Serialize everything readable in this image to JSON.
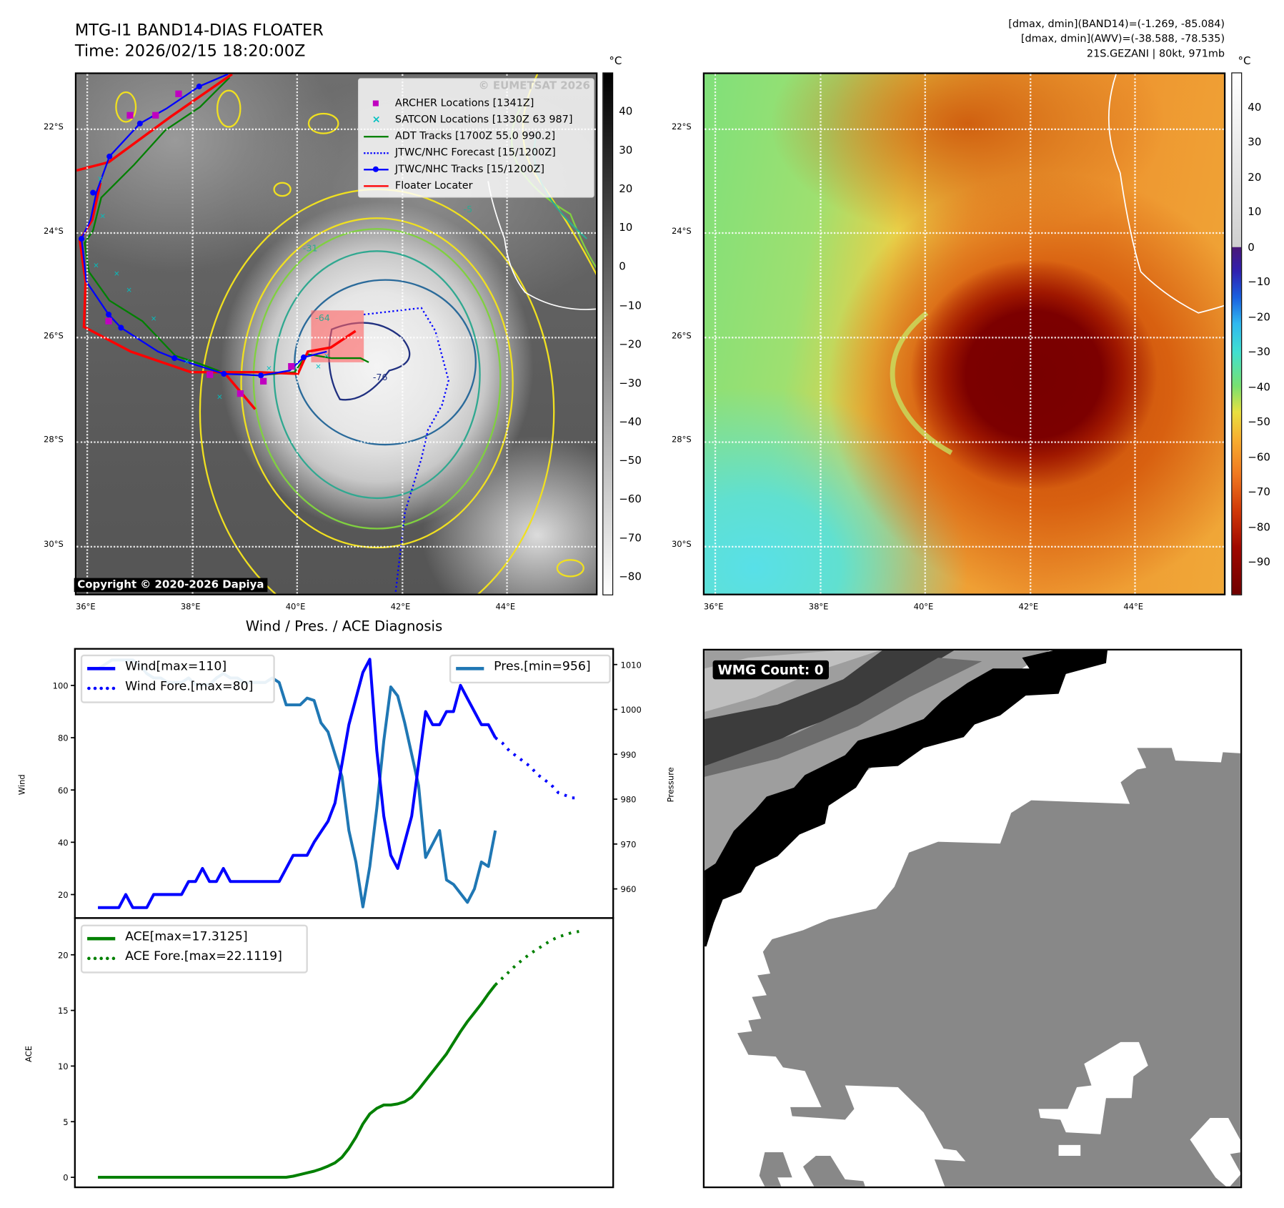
{
  "header": {
    "title_line1": "MTG-I1 BAND14-DIAS FLOATER",
    "title_line2": "Time: 2026/02/15 18:20:00Z",
    "info_line1": "[dmax, dmin](BAND14)=(-1.269, -85.084)",
    "info_line2": "[dmax, dmin](AWV)=(-38.588, -78.535)",
    "info_line3": "21S.GEZANI | 80kt, 971mb"
  },
  "map_axes": {
    "lat_labels": [
      "22°S",
      "24°S",
      "26°S",
      "28°S",
      "30°S"
    ],
    "lon_labels": [
      "36°E",
      "38°E",
      "40°E",
      "42°E",
      "44°E"
    ]
  },
  "map1": {
    "watermark": "© EUMETSAT 2026",
    "copyright": "Copyright © 2020-2026 Dapiya",
    "contour_labels": [
      "-31",
      "-64",
      "-76",
      "-5"
    ],
    "legend": [
      {
        "label": "ARCHER Locations [1341Z]",
        "color": "#c000c0"
      },
      {
        "label": "SATCON Locations [1330Z 63 987]",
        "color": "#00c0c0"
      },
      {
        "label": "ADT Tracks [1700Z 55.0 990.2]",
        "color": "#008000"
      },
      {
        "label": "JTWC/NHC Forecast [15/1200Z]",
        "color": "#0000ff"
      },
      {
        "label": "JTWC/NHC Tracks [15/1200Z]",
        "color": "#0000ff"
      },
      {
        "label": "Floater Locater",
        "color": "#ff0000"
      }
    ]
  },
  "colorbar1": {
    "unit": "°C",
    "ticks": [
      "40",
      "30",
      "20",
      "10",
      "0",
      "−10",
      "−20",
      "−30",
      "−40",
      "−50",
      "−60",
      "−70",
      "−80"
    ]
  },
  "colorbar2": {
    "unit": "°C",
    "ticks": [
      "40",
      "30",
      "20",
      "10",
      "0",
      "−10",
      "−20",
      "−30",
      "−40",
      "−50",
      "−60",
      "−70",
      "−80",
      "−90"
    ]
  },
  "wmg": {
    "label": "WMG Count: 0"
  },
  "chart_data": {
    "type": "line",
    "title": "Wind / Pres. / ACE Diagnosis",
    "panels": [
      {
        "ylabel": "Wind",
        "ylim": [
          11,
          114
        ],
        "yticks": [
          "100",
          "80",
          "60",
          "40",
          "20"
        ],
        "y2label": "Pressure",
        "y2lim": [
          953.5,
          1013.5
        ],
        "y2ticks": [
          "1010",
          "1000",
          "990",
          "980",
          "970",
          "960"
        ],
        "xlim": [
          -3.3,
          73.9
        ],
        "legend_left": [
          "Wind[max=110]",
          "Wind Fore.[max=80]"
        ],
        "legend_right": [
          "Pres.[min=956]"
        ]
      },
      {
        "ylabel": "ACE",
        "ylim": [
          -0.9,
          23.3
        ],
        "yticks": [
          "20",
          "15",
          "10",
          "5",
          "0"
        ],
        "xlim": [
          -3.3,
          73.9
        ],
        "legend_left": [
          "ACE[max=17.3125]",
          "ACE Fore.[max=22.1119]"
        ]
      }
    ],
    "series": {
      "wind": {
        "name": "Wind",
        "color": "#0000ff",
        "start": 0,
        "values": [
          15,
          15,
          15,
          15,
          20,
          15,
          15,
          15,
          20,
          20,
          20,
          20,
          20,
          25,
          25,
          30,
          25,
          25,
          30,
          25,
          25,
          25,
          25,
          25,
          25,
          25,
          25,
          30,
          35,
          35,
          35,
          40,
          44,
          48,
          55,
          70,
          85,
          95,
          105,
          110,
          75,
          50,
          35,
          30,
          40,
          50,
          70,
          90,
          85,
          85,
          90,
          90,
          100,
          95,
          90,
          85,
          85,
          80
        ]
      },
      "wind_forecast": {
        "name": "Wind Fore.",
        "color": "#0000ff",
        "start": 57,
        "values": [
          80,
          78,
          75,
          73,
          71,
          69,
          66,
          64,
          62,
          59,
          58,
          57,
          57
        ]
      },
      "pressure": {
        "name": "Pres.",
        "color": "#1f77b4",
        "start": 0,
        "values": [
          1009,
          1010,
          1011,
          1011,
          1011,
          1011,
          1010,
          1008,
          1007,
          1007,
          1006,
          1006,
          1006,
          1007,
          1005.5,
          1005.5,
          1005.5,
          1007,
          1008,
          1007,
          1007,
          1006,
          1006,
          1006,
          1006,
          1007,
          1006,
          1001,
          1001,
          1001,
          1002.5,
          1002,
          997,
          995,
          990,
          985,
          973,
          966,
          956,
          965,
          978,
          993,
          1005,
          1003,
          997,
          990,
          983,
          967,
          970,
          973,
          962,
          961,
          959,
          957,
          960,
          966,
          965,
          973
        ]
      },
      "ace": {
        "name": "ACE",
        "color": "#008000",
        "start": 0,
        "values": [
          0,
          0,
          0,
          0,
          0,
          0,
          0,
          0,
          0,
          0,
          0,
          0,
          0,
          0,
          0,
          0,
          0,
          0,
          0,
          0,
          0,
          0,
          0,
          0,
          0,
          0,
          0,
          0,
          0.1,
          0.25,
          0.4,
          0.55,
          0.75,
          1.0,
          1.3,
          1.8,
          2.6,
          3.6,
          4.8,
          5.7,
          6.2,
          6.5,
          6.5,
          6.6,
          6.8,
          7.2,
          7.9,
          8.7,
          9.5,
          10.3,
          11.1,
          12.1,
          13.1,
          14.0,
          14.8,
          15.6,
          16.5,
          17.3
        ]
      },
      "ace_forecast": {
        "name": "ACE Fore.",
        "color": "#008000",
        "start": 57,
        "values": [
          17.3,
          17.9,
          18.5,
          19.1,
          19.6,
          20.1,
          20.5,
          20.9,
          21.3,
          21.6,
          21.8,
          22.0,
          22.1
        ]
      }
    }
  }
}
